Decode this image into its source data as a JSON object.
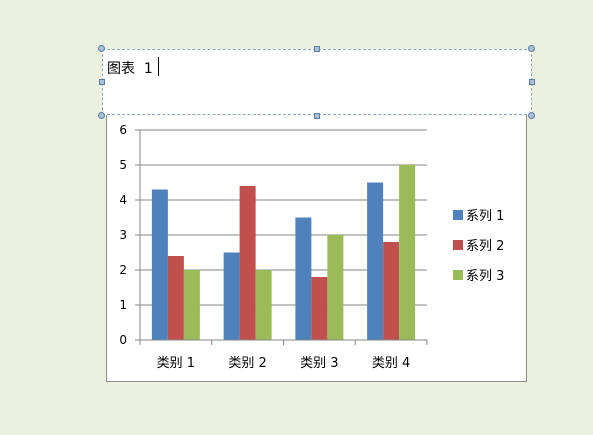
{
  "caption": {
    "text": "图表  1"
  },
  "colors": {
    "background": "#ebf1de",
    "series1": "#4f81bd",
    "series2": "#c0504d",
    "series3": "#9bbb59"
  },
  "chart_data": {
    "type": "bar",
    "title": "",
    "xlabel": "",
    "ylabel": "",
    "categories": [
      "类别 1",
      "类别 2",
      "类别 3",
      "类别 4"
    ],
    "series": [
      {
        "name": "系列 1",
        "values": [
          4.3,
          2.5,
          3.5,
          4.5
        ],
        "color": "#4f81bd"
      },
      {
        "name": "系列 2",
        "values": [
          2.4,
          4.4,
          1.8,
          2.8
        ],
        "color": "#c0504d"
      },
      {
        "name": "系列 3",
        "values": [
          2,
          2,
          3,
          5
        ],
        "color": "#9bbb59"
      }
    ],
    "ylim": [
      0,
      6
    ],
    "yticks": [
      0,
      1,
      2,
      3,
      4,
      5,
      6
    ],
    "grid": true,
    "legend": "right"
  }
}
